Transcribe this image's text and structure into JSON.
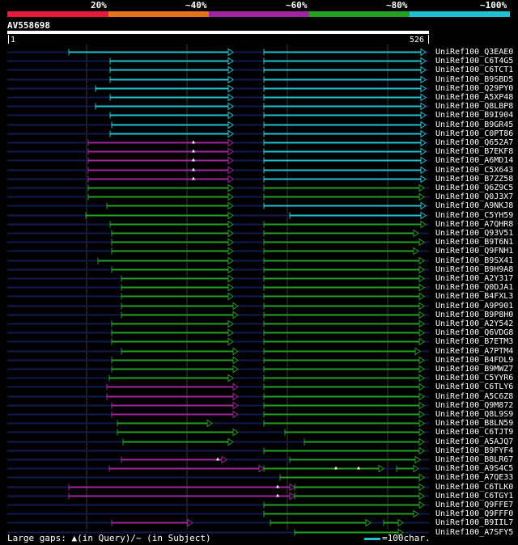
{
  "legend": {
    "labels": [
      "20%",
      "~40%",
      "~60%",
      "~80%",
      "~100%"
    ],
    "colors": [
      "#e8193a",
      "#e8731e",
      "#a026a0",
      "#24a024",
      "#1fc2d0"
    ]
  },
  "query": {
    "id": "AV558698",
    "start": "1",
    "end": "526"
  },
  "footer": {
    "gaps_text": "Large gaps: ▲(in Query)/~ (in Subject)",
    "scale_text": "=100char."
  },
  "colors": {
    "cyan": "#1fc2d0",
    "green": "#24a024",
    "magenta": "#a026a0",
    "backbone": "#101a50",
    "grid": "#3a3a3a",
    "marker": "#ffffff"
  },
  "hits": [
    {
      "id": "UniRef100_Q3EAE0",
      "color": "cyan",
      "segs": [
        [
          85,
          288
        ],
        [
          326,
          526
        ]
      ],
      "marks": []
    },
    {
      "id": "UniRef100_C6T4G5",
      "color": "cyan",
      "segs": [
        [
          136,
          288
        ],
        [
          326,
          526
        ]
      ],
      "marks": []
    },
    {
      "id": "UniRef100_C6TCT1",
      "color": "cyan",
      "segs": [
        [
          136,
          288
        ],
        [
          326,
          526
        ]
      ],
      "marks": []
    },
    {
      "id": "UniRef100_B9SBD5",
      "color": "cyan",
      "segs": [
        [
          136,
          288
        ],
        [
          326,
          526
        ]
      ],
      "marks": []
    },
    {
      "id": "UniRef100_Q29PY0",
      "color": "cyan",
      "segs": [
        [
          118,
          288
        ],
        [
          326,
          526
        ]
      ],
      "marks": []
    },
    {
      "id": "UniRef100_A5XP48",
      "color": "cyan",
      "segs": [
        [
          136,
          288
        ],
        [
          326,
          526
        ]
      ],
      "marks": []
    },
    {
      "id": "UniRef100_Q8LBP8",
      "color": "cyan",
      "segs": [
        [
          118,
          288
        ],
        [
          326,
          526
        ]
      ],
      "marks": []
    },
    {
      "id": "UniRef100_B9I904",
      "color": "cyan",
      "segs": [
        [
          136,
          288
        ],
        [
          326,
          526
        ]
      ],
      "marks": []
    },
    {
      "id": "UniRef100_B9GR45",
      "color": "cyan",
      "segs": [
        [
          138,
          288
        ],
        [
          326,
          526
        ]
      ],
      "marks": []
    },
    {
      "id": "UniRef100_C0PT86",
      "color": "cyan",
      "segs": [
        [
          136,
          288
        ],
        [
          326,
          526
        ]
      ],
      "marks": []
    },
    {
      "id": "UniRef100_Q652A7",
      "color": "magenta",
      "segs": [
        [
          109,
          288
        ]
      ],
      "marks": [
        239
      ],
      "extra": [
        {
          "color": "cyan",
          "s": [
            326,
            526
          ]
        }
      ]
    },
    {
      "id": "UniRef100_B7EKF8",
      "color": "magenta",
      "segs": [
        [
          109,
          288
        ]
      ],
      "marks": [
        239
      ],
      "extra": [
        {
          "color": "cyan",
          "s": [
            326,
            526
          ]
        }
      ]
    },
    {
      "id": "UniRef100_A6MD14",
      "color": "magenta",
      "segs": [
        [
          109,
          288
        ]
      ],
      "marks": [
        239
      ],
      "extra": [
        {
          "color": "cyan",
          "s": [
            326,
            526
          ]
        }
      ]
    },
    {
      "id": "UniRef100_C5X643",
      "color": "magenta",
      "segs": [
        [
          109,
          288
        ]
      ],
      "marks": [
        239
      ],
      "extra": [
        {
          "color": "cyan",
          "s": [
            326,
            526
          ]
        }
      ]
    },
    {
      "id": "UniRef100_B7ZZ58",
      "color": "magenta",
      "segs": [
        [
          109,
          288
        ]
      ],
      "marks": [
        239
      ],
      "extra": [
        {
          "color": "cyan",
          "s": [
            326,
            526
          ]
        }
      ]
    },
    {
      "id": "UniRef100_Q6Z9C5",
      "color": "green",
      "segs": [
        [
          109,
          288
        ],
        [
          326,
          524
        ]
      ],
      "marks": []
    },
    {
      "id": "UniRef100_Q0J3X7",
      "color": "green",
      "segs": [
        [
          109,
          288
        ],
        [
          326,
          524
        ]
      ],
      "marks": []
    },
    {
      "id": "UniRef100_A9NKJ8",
      "color": "green",
      "segs": [
        [
          132,
          288
        ]
      ],
      "marks": [],
      "extra": [
        {
          "color": "cyan",
          "s": [
            326,
            526
          ]
        }
      ]
    },
    {
      "id": "UniRef100_C5YH59",
      "color": "green",
      "segs": [
        [
          106,
          288
        ]
      ],
      "marks": [],
      "extra": [
        {
          "color": "cyan",
          "s": [
            358,
            526
          ]
        }
      ]
    },
    {
      "id": "UniRef100_A7QHR8",
      "color": "green",
      "segs": [
        [
          136,
          288
        ],
        [
          326,
          526
        ]
      ],
      "marks": []
    },
    {
      "id": "UniRef100_Q93V51",
      "color": "green",
      "segs": [
        [
          138,
          288
        ],
        [
          326,
          517
        ]
      ],
      "marks": []
    },
    {
      "id": "UniRef100_B9T6N1",
      "color": "green",
      "segs": [
        [
          138,
          288
        ],
        [
          326,
          524
        ]
      ],
      "marks": []
    },
    {
      "id": "UniRef100_Q9FNH1",
      "color": "green",
      "segs": [
        [
          138,
          288
        ],
        [
          326,
          517
        ]
      ],
      "marks": []
    },
    {
      "id": "UniRef100_B9SX41",
      "color": "green",
      "segs": [
        [
          121,
          288
        ],
        [
          326,
          524
        ]
      ],
      "marks": []
    },
    {
      "id": "UniRef100_B9H9A8",
      "color": "green",
      "segs": [
        [
          138,
          288
        ],
        [
          326,
          524
        ]
      ],
      "marks": []
    },
    {
      "id": "UniRef100_A2Y317",
      "color": "green",
      "segs": [
        [
          150,
          288
        ],
        [
          326,
          524
        ]
      ],
      "marks": []
    },
    {
      "id": "UniRef100_Q0DJA1",
      "color": "green",
      "segs": [
        [
          150,
          288
        ],
        [
          326,
          524
        ]
      ],
      "marks": []
    },
    {
      "id": "UniRef100_B4FXL3",
      "color": "green",
      "segs": [
        [
          150,
          288
        ],
        [
          326,
          524
        ]
      ],
      "marks": []
    },
    {
      "id": "UniRef100_A9P901",
      "color": "green",
      "segs": [
        [
          150,
          294
        ],
        [
          326,
          524
        ]
      ],
      "marks": []
    },
    {
      "id": "UniRef100_B9P8H0",
      "color": "green",
      "segs": [
        [
          150,
          294
        ],
        [
          326,
          524
        ]
      ],
      "marks": []
    },
    {
      "id": "UniRef100_A2Y542",
      "color": "green",
      "segs": [
        [
          138,
          288
        ],
        [
          326,
          524
        ]
      ],
      "marks": []
    },
    {
      "id": "UniRef100_Q6VDG8",
      "color": "green",
      "segs": [
        [
          138,
          288
        ],
        [
          326,
          524
        ]
      ],
      "marks": []
    },
    {
      "id": "UniRef100_B7ETM3",
      "color": "green",
      "segs": [
        [
          138,
          288
        ],
        [
          326,
          524
        ]
      ],
      "marks": []
    },
    {
      "id": "UniRef100_A7PTM4",
      "color": "green",
      "segs": [
        [
          150,
          294
        ],
        [
          326,
          519
        ]
      ],
      "marks": []
    },
    {
      "id": "UniRef100_B4FDL9",
      "color": "green",
      "segs": [
        [
          138,
          294
        ],
        [
          326,
          524
        ]
      ],
      "marks": []
    },
    {
      "id": "UniRef100_B9MWZ7",
      "color": "green",
      "segs": [
        [
          138,
          294
        ],
        [
          326,
          524
        ]
      ],
      "marks": []
    },
    {
      "id": "UniRef100_C5YYR6",
      "color": "green",
      "segs": [
        [
          135,
          288
        ],
        [
          326,
          524
        ]
      ],
      "marks": []
    },
    {
      "id": "UniRef100_C6TLY6",
      "color": "magenta",
      "segs": [
        [
          132,
          294
        ]
      ],
      "marks": [],
      "extra": [
        {
          "color": "green",
          "s": [
            326,
            524
          ]
        }
      ]
    },
    {
      "id": "UniRef100_A5C6Z8",
      "color": "magenta",
      "segs": [
        [
          132,
          294
        ]
      ],
      "marks": [],
      "extra": [
        {
          "color": "green",
          "s": [
            326,
            524
          ]
        }
      ]
    },
    {
      "id": "UniRef100_Q9M872",
      "color": "magenta",
      "segs": [
        [
          138,
          294
        ]
      ],
      "marks": [],
      "extra": [
        {
          "color": "green",
          "s": [
            326,
            524
          ]
        }
      ]
    },
    {
      "id": "UniRef100_Q8L9S9",
      "color": "magenta",
      "segs": [
        [
          138,
          294
        ]
      ],
      "marks": [],
      "extra": [
        {
          "color": "green",
          "s": [
            326,
            524
          ]
        }
      ]
    },
    {
      "id": "UniRef100_B8LN59",
      "color": "green",
      "segs": [
        [
          145,
          262
        ],
        [
          326,
          524
        ]
      ],
      "marks": []
    },
    {
      "id": "UniRef100_C6TJT9",
      "color": "green",
      "segs": [
        [
          145,
          294
        ],
        [
          352,
          524
        ]
      ],
      "marks": []
    },
    {
      "id": "UniRef100_A5AJQ7",
      "color": "green",
      "segs": [
        [
          152,
          288
        ],
        [
          376,
          524
        ]
      ],
      "marks": []
    },
    {
      "id": "UniRef100_B9FYF4",
      "color": "green",
      "segs": [
        [
          326,
          524
        ]
      ],
      "marks": []
    },
    {
      "id": "UniRef100_B8LR67",
      "color": "magenta",
      "segs": [
        [
          150,
          280
        ]
      ],
      "marks": [
        269
      ],
      "extra": [
        {
          "color": "green",
          "s": [
            358,
            519
          ]
        }
      ]
    },
    {
      "id": "UniRef100_A9S4C5",
      "color": "magenta",
      "segs": [
        [
          135,
          326
        ]
      ],
      "marks": [
        415,
        443
      ],
      "extra": [
        {
          "color": "green",
          "s": [
            326,
            474
          ]
        },
        {
          "color": "green",
          "s": [
            490,
            517
          ]
        }
      ]
    },
    {
      "id": "UniRef100_A7QE33",
      "color": "green",
      "segs": [
        [
          346,
          524
        ]
      ],
      "marks": []
    },
    {
      "id": "UniRef100_C6TLK0",
      "color": "magenta",
      "segs": [
        [
          85,
          364
        ]
      ],
      "marks": [
        343
      ],
      "extra": [
        {
          "color": "green",
          "s": [
            364,
            524
          ]
        }
      ]
    },
    {
      "id": "UniRef100_C6TGY1",
      "color": "magenta",
      "segs": [
        [
          85,
          364
        ]
      ],
      "marks": [
        343
      ],
      "extra": [
        {
          "color": "green",
          "s": [
            364,
            524
          ]
        }
      ]
    },
    {
      "id": "UniRef100_Q9FFE7",
      "color": "green",
      "segs": [
        [
          326,
          524
        ]
      ],
      "marks": []
    },
    {
      "id": "UniRef100_Q9FFF0",
      "color": "green",
      "segs": [
        [
          326,
          517
        ]
      ],
      "marks": []
    },
    {
      "id": "UniRef100_B9IIL7",
      "color": "magenta",
      "segs": [
        [
          138,
          238
        ]
      ],
      "marks": [],
      "extra": [
        {
          "color": "green",
          "s": [
            334,
            458
          ]
        },
        {
          "color": "green",
          "s": [
            474,
            498
          ]
        }
      ]
    },
    {
      "id": "UniRef100_A7SFY5",
      "color": "green",
      "segs": [
        [
          364,
          498
        ]
      ],
      "marks": []
    }
  ]
}
